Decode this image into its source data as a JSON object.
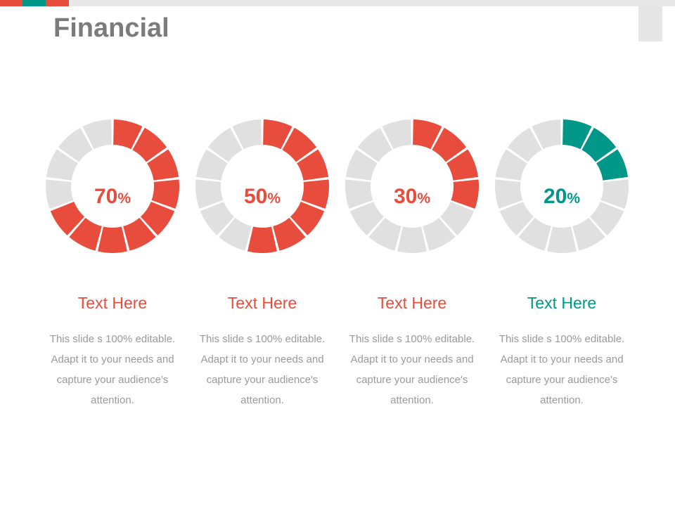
{
  "page": {
    "title": "Financial"
  },
  "colors": {
    "red": "#e84c3d",
    "teal": "#009688",
    "track": "#e0e0e0",
    "text_gray": "#9a9a9a",
    "title_gray": "#7b7b7b"
  },
  "chart_data": [
    {
      "type": "pie",
      "style": "segmented-donut",
      "segments": 13,
      "value": 70,
      "label_number": "70",
      "label_unit": "%",
      "heading": "Text Here",
      "description": "This slide s 100% editable. Adapt it to your needs and capture your audience's attention.",
      "color": "#e84c3d"
    },
    {
      "type": "pie",
      "style": "segmented-donut",
      "segments": 13,
      "value": 50,
      "label_number": "50",
      "label_unit": "%",
      "heading": "Text Here",
      "description": "This slide s 100% editable. Adapt it to your needs and capture your audience's attention.",
      "color": "#e84c3d"
    },
    {
      "type": "pie",
      "style": "segmented-donut",
      "segments": 13,
      "value": 30,
      "label_number": "30",
      "label_unit": "%",
      "heading": "Text Here",
      "description": "This slide s 100% editable. Adapt it to your needs and capture your audience's attention.",
      "color": "#e84c3d"
    },
    {
      "type": "pie",
      "style": "segmented-donut",
      "segments": 13,
      "value": 20,
      "label_number": "20",
      "label_unit": "%",
      "heading": "Text Here",
      "description": "This slide s 100% editable. Adapt it to your needs and capture your audience's attention.",
      "color": "#009688"
    }
  ]
}
